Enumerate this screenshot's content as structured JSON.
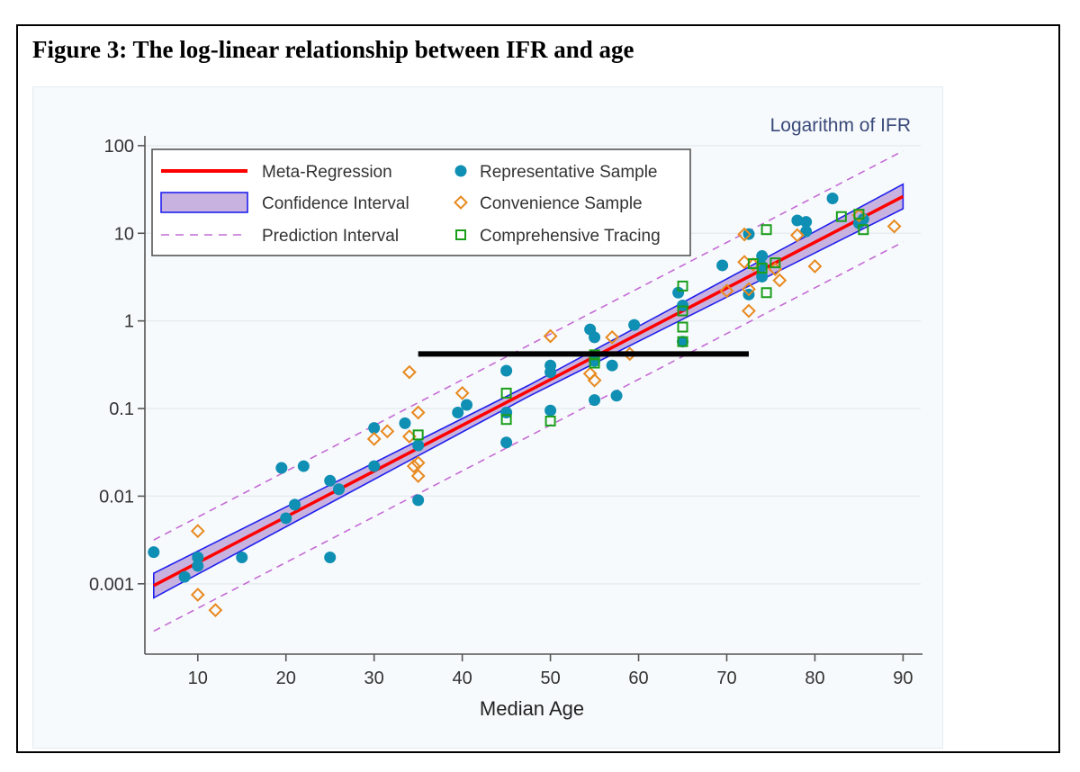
{
  "figure": {
    "title": "Figure 3: The log-linear relationship between IFR and age"
  },
  "chart_data": {
    "type": "scatter",
    "title": "Logarithm of IFR",
    "xlabel": "Median Age",
    "ylabel": "",
    "xlim": [
      4,
      92
    ],
    "ylim_log10": [
      -3.7,
      2.05
    ],
    "y_scale": "log",
    "x_ticks": [
      10,
      20,
      30,
      40,
      50,
      60,
      70,
      80,
      90
    ],
    "y_ticks": [
      {
        "value": 0.001,
        "label": "0.001"
      },
      {
        "value": 0.01,
        "label": "0.01"
      },
      {
        "value": 0.1,
        "label": "0.1"
      },
      {
        "value": 1,
        "label": "1"
      },
      {
        "value": 10,
        "label": "10"
      },
      {
        "value": 100,
        "label": "100"
      }
    ],
    "legend_position": "top-left",
    "legend": [
      {
        "key": "meta",
        "label": "Meta-Regression"
      },
      {
        "key": "ci",
        "label": "Confidence Interval"
      },
      {
        "key": "pi",
        "label": "Prediction Interval"
      },
      {
        "key": "rep",
        "label": "Representative Sample"
      },
      {
        "key": "conv",
        "label": "Convenience Sample"
      },
      {
        "key": "comp",
        "label": "Comprehensive Tracing"
      }
    ],
    "regression": {
      "x": [
        5,
        90
      ],
      "log10_ifr": [
        -3.02,
        1.42
      ],
      "ci_halfwidth_log10_at_ends": 0.14,
      "pi_halfwidth_log10": 0.52
    },
    "annotation_line": {
      "x": [
        35,
        72.5
      ],
      "y": 0.42,
      "color": "#000000"
    },
    "colors": {
      "regression": "#ff0000",
      "ci_fill": "#c8b3e0",
      "ci_edge": "#2020ee",
      "pi": "#c46bd6",
      "rep": "#0f8fb3",
      "conv": "#e8891f",
      "comp": "#1a9e1a",
      "grid": "#e7ecf0",
      "axis": "#555555",
      "title": "#3a4a7a"
    },
    "series": [
      {
        "name": "Representative Sample",
        "marker": "circle",
        "points": [
          [
            5,
            0.0023
          ],
          [
            8.5,
            0.0012
          ],
          [
            10,
            0.0016
          ],
          [
            10,
            0.002
          ],
          [
            15,
            0.002
          ],
          [
            19.5,
            0.021
          ],
          [
            20,
            0.0056
          ],
          [
            21,
            0.008
          ],
          [
            22,
            0.022
          ],
          [
            25,
            0.015
          ],
          [
            25,
            0.002
          ],
          [
            26,
            0.012
          ],
          [
            30,
            0.06
          ],
          [
            30,
            0.022
          ],
          [
            33.5,
            0.068
          ],
          [
            35,
            0.038
          ],
          [
            35,
            0.009
          ],
          [
            39.5,
            0.09
          ],
          [
            40.5,
            0.11
          ],
          [
            45,
            0.27
          ],
          [
            45,
            0.09
          ],
          [
            45,
            0.041
          ],
          [
            50,
            0.31
          ],
          [
            50,
            0.26
          ],
          [
            50,
            0.095
          ],
          [
            54.5,
            0.8
          ],
          [
            55,
            0.65
          ],
          [
            55,
            0.35
          ],
          [
            55,
            0.125
          ],
          [
            57,
            0.31
          ],
          [
            57.5,
            0.14
          ],
          [
            59.5,
            0.9
          ],
          [
            64.5,
            2.1
          ],
          [
            65,
            1.5
          ],
          [
            65,
            0.58
          ],
          [
            69.5,
            4.3
          ],
          [
            72.5,
            9.8
          ],
          [
            72.5,
            2.0
          ],
          [
            74,
            5.5
          ],
          [
            74,
            4.2
          ],
          [
            74,
            3.2
          ],
          [
            78,
            14
          ],
          [
            79,
            13.5
          ],
          [
            79,
            10.5
          ],
          [
            82,
            25
          ],
          [
            85,
            13
          ],
          [
            85.5,
            14.5
          ]
        ]
      },
      {
        "name": "Convenience Sample",
        "marker": "diamond",
        "points": [
          [
            10,
            0.004
          ],
          [
            10,
            0.00075
          ],
          [
            12,
            0.0005
          ],
          [
            30,
            0.045
          ],
          [
            31.5,
            0.055
          ],
          [
            34,
            0.26
          ],
          [
            34,
            0.048
          ],
          [
            34.5,
            0.022
          ],
          [
            35,
            0.09
          ],
          [
            35,
            0.024
          ],
          [
            35,
            0.017
          ],
          [
            40,
            0.15
          ],
          [
            50,
            0.67
          ],
          [
            54.5,
            0.25
          ],
          [
            55,
            0.21
          ],
          [
            57,
            0.65
          ],
          [
            59,
            0.42
          ],
          [
            70,
            2.2
          ],
          [
            72,
            9.7
          ],
          [
            72,
            4.7
          ],
          [
            72.5,
            2.3
          ],
          [
            72.5,
            1.3
          ],
          [
            73,
            4.4
          ],
          [
            75.5,
            3.9
          ],
          [
            76,
            2.9
          ],
          [
            78,
            9.5
          ],
          [
            80,
            4.2
          ],
          [
            85,
            16
          ],
          [
            89,
            12
          ]
        ]
      },
      {
        "name": "Comprehensive Tracing",
        "marker": "square",
        "points": [
          [
            35,
            0.05
          ],
          [
            45,
            0.15
          ],
          [
            45,
            0.075
          ],
          [
            50,
            0.072
          ],
          [
            55,
            0.33
          ],
          [
            55,
            0.41
          ],
          [
            65,
            2.5
          ],
          [
            65,
            1.3
          ],
          [
            65,
            0.85
          ],
          [
            65,
            0.58
          ],
          [
            73,
            4.5
          ],
          [
            74,
            4.0
          ],
          [
            74.5,
            11
          ],
          [
            74.5,
            2.1
          ],
          [
            75.5,
            4.6
          ],
          [
            83,
            15.5
          ],
          [
            85,
            16.5
          ],
          [
            85.5,
            11
          ]
        ]
      }
    ]
  }
}
